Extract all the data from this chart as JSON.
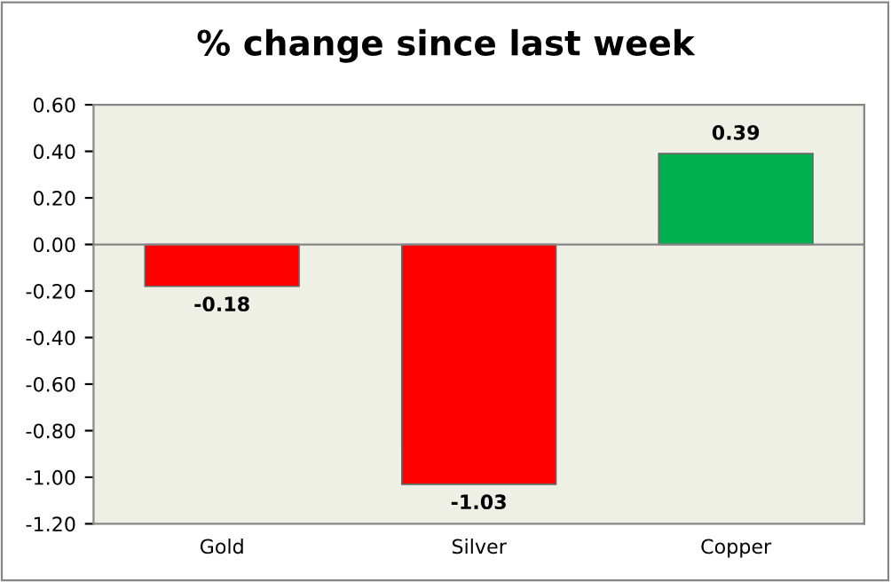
{
  "chart_data": {
    "type": "bar",
    "title": "% change since last week",
    "categories": [
      "Gold",
      "Silver",
      "Copper"
    ],
    "values": [
      -0.18,
      -1.03,
      0.39
    ],
    "colors": [
      "#ff0000",
      "#ff0000",
      "#00b050"
    ],
    "value_labels": [
      "-0.18",
      "-1.03",
      "0.39"
    ],
    "ylim": [
      -1.2,
      0.6
    ],
    "yticks": [
      {
        "value": 0.6,
        "label": "0.60"
      },
      {
        "value": 0.4,
        "label": "0.40"
      },
      {
        "value": 0.2,
        "label": "0.20"
      },
      {
        "value": 0,
        "label": "0.00"
      },
      {
        "value": -0.2,
        "label": "-0.20"
      },
      {
        "value": -0.4,
        "label": "-0.40"
      },
      {
        "value": -0.6,
        "label": "-0.60"
      },
      {
        "value": -0.8,
        "label": "-0.80"
      },
      {
        "value": -1.0,
        "label": "-1.00"
      },
      {
        "value": -1.2,
        "label": "-1.20"
      }
    ],
    "ref_lines": [
      {
        "axis": "y",
        "value": 0,
        "color": "#868686"
      }
    ],
    "grid": false,
    "legend": false
  }
}
